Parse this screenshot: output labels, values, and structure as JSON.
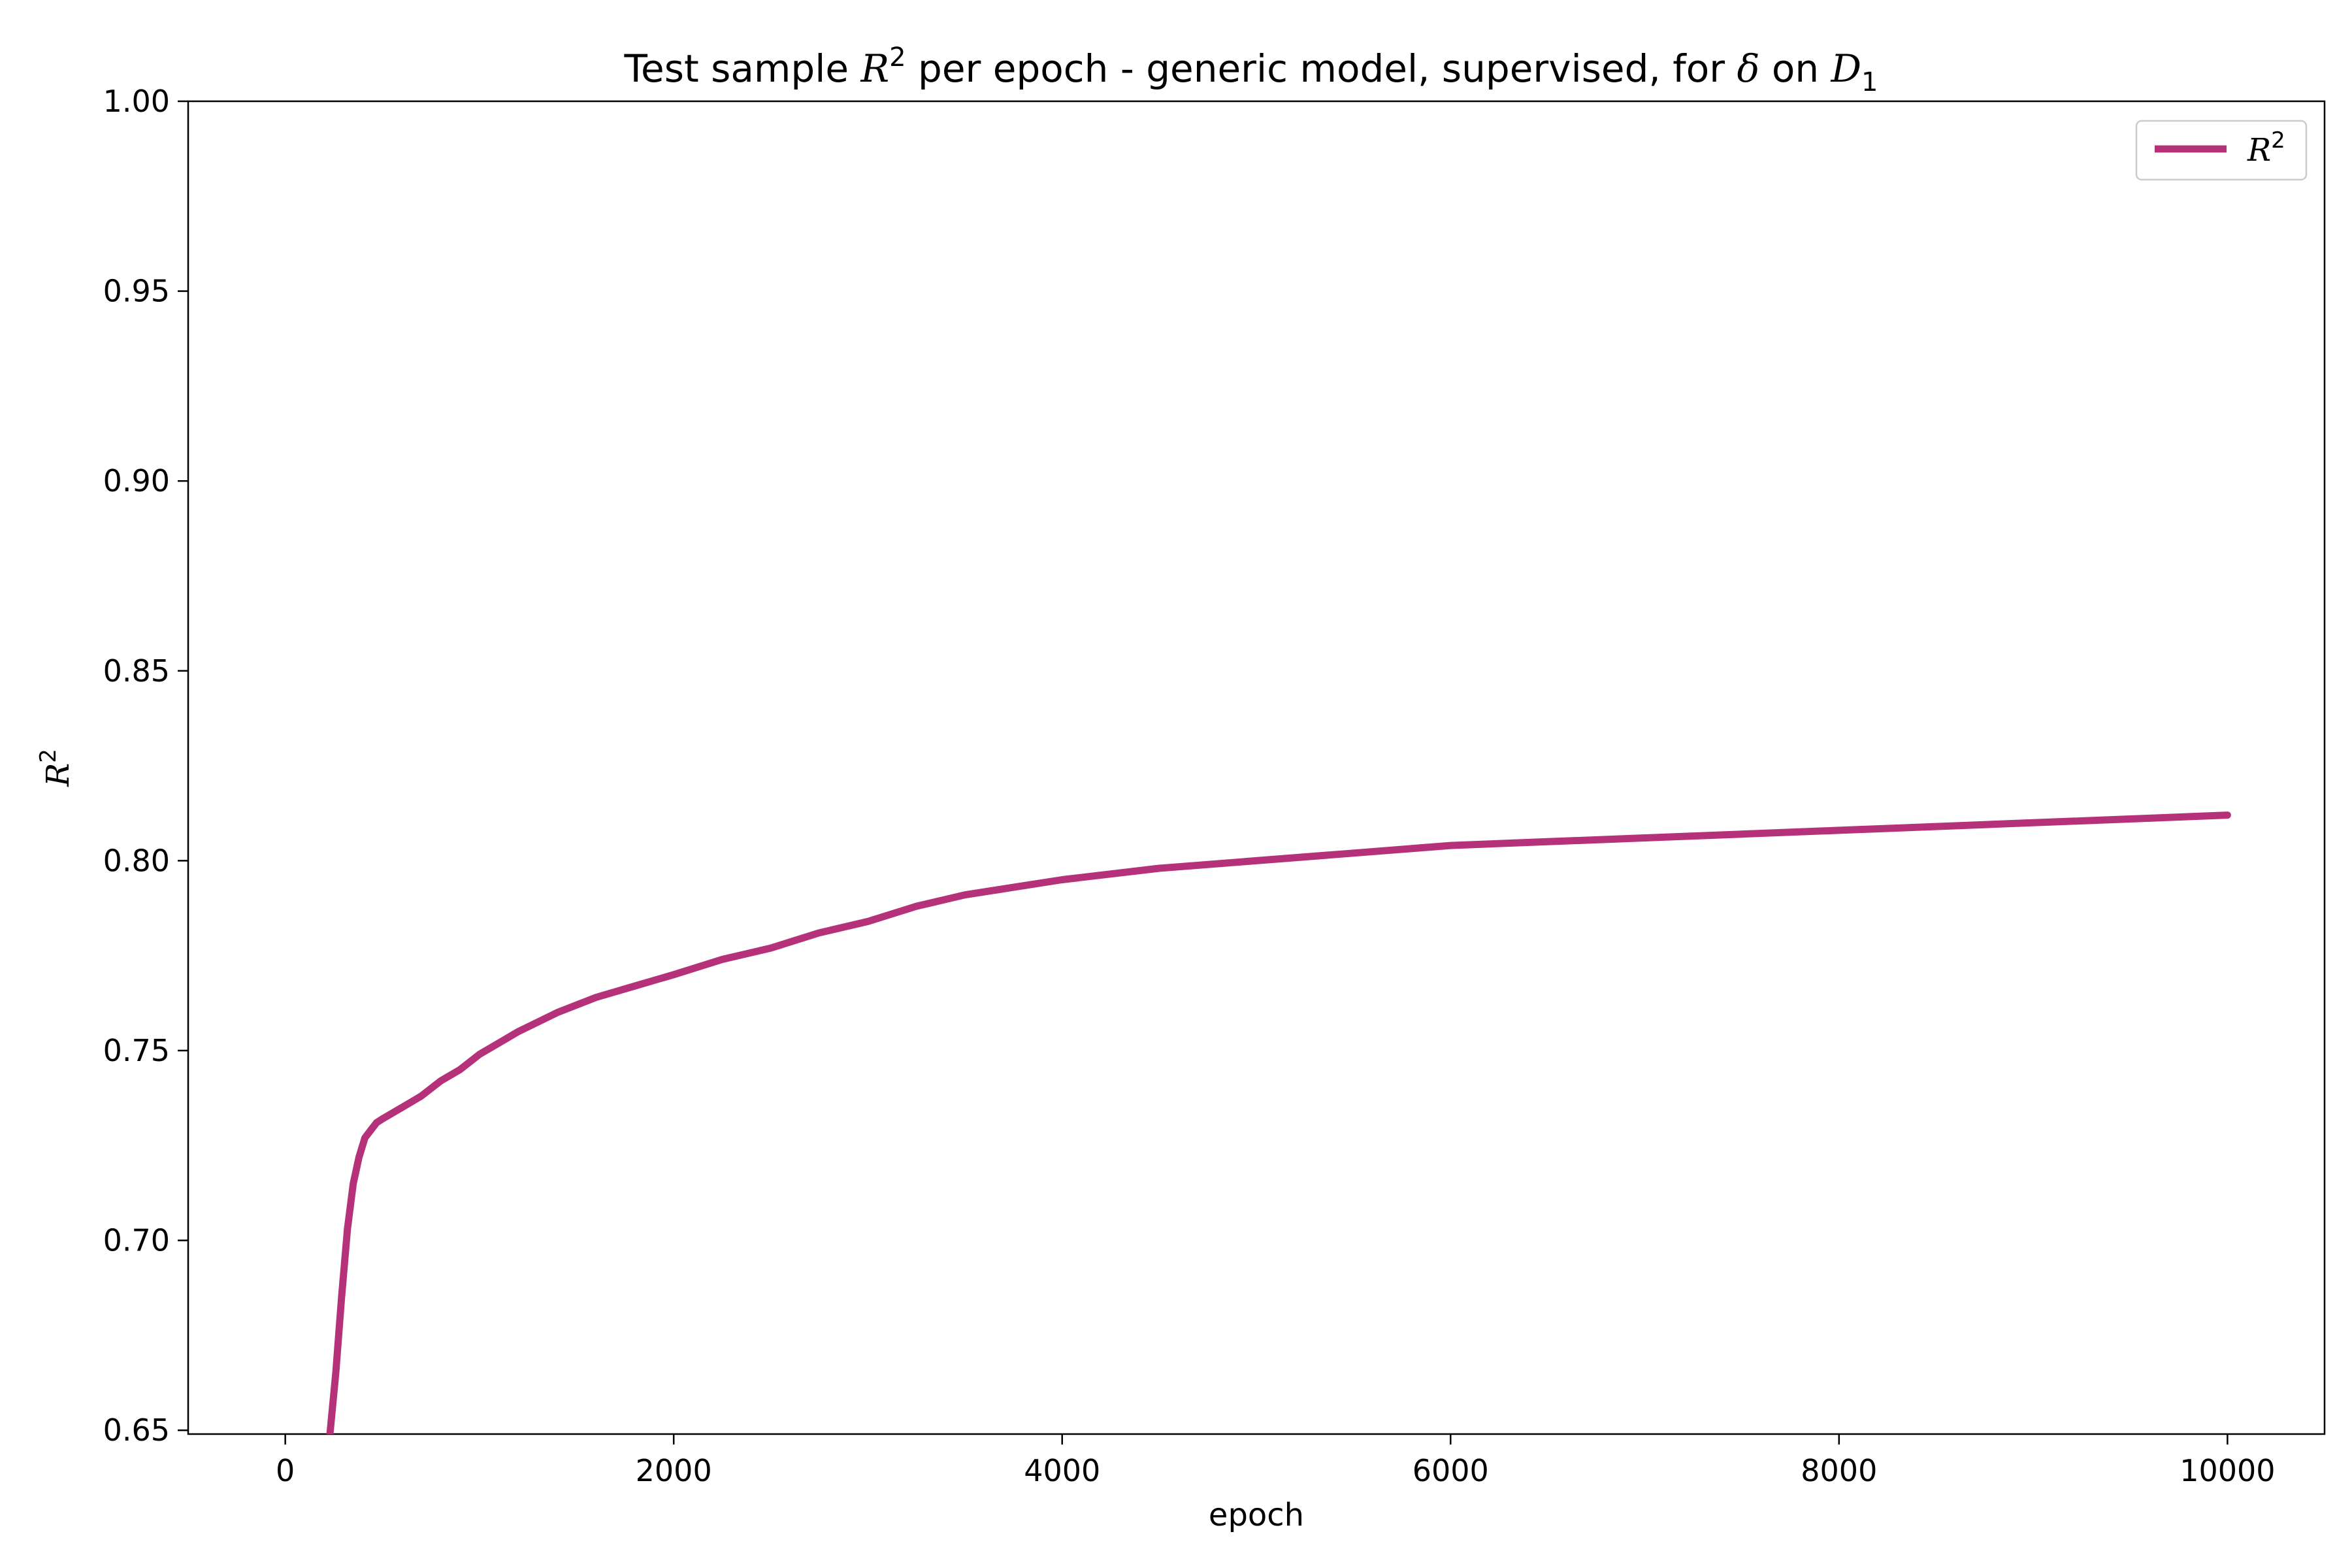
{
  "chart_data": {
    "type": "line",
    "title": {
      "prefix": "Test sample ",
      "r_sym": "R",
      "r_sup": "2",
      "middle": " per epoch - generic model, supervised, for ",
      "delta_sym": "δ",
      "on_word": " on ",
      "d_sym": "D",
      "d_sub": "1"
    },
    "xlabel": "epoch",
    "ylabel": {
      "sym": "R",
      "sup": "2"
    },
    "xlim": [
      -500,
      10500
    ],
    "ylim": [
      0.649,
      1.0
    ],
    "x_ticks": [
      0,
      2000,
      4000,
      6000,
      8000,
      10000
    ],
    "x_tick_labels": [
      "0",
      "2000",
      "4000",
      "6000",
      "8000",
      "10000"
    ],
    "y_ticks": [
      0.65,
      0.7,
      0.75,
      0.8,
      0.85,
      0.9,
      0.95,
      1.0
    ],
    "y_tick_labels": [
      "0.65",
      "0.70",
      "0.75",
      "0.80",
      "0.85",
      "0.90",
      "0.95",
      "1.00"
    ],
    "grid": false,
    "legend_position": "top-right",
    "series": [
      {
        "name": {
          "sym": "R",
          "sup": "2"
        },
        "color": "#b5327a",
        "x": [
          230,
          260,
          290,
          320,
          350,
          380,
          410,
          440,
          470,
          500,
          600,
          700,
          800,
          900,
          1000,
          1200,
          1400,
          1600,
          1800,
          2000,
          2250,
          2500,
          2750,
          3000,
          3250,
          3500,
          3750,
          4000,
          4500,
          5000,
          5500,
          6000,
          6500,
          7000,
          7500,
          8000,
          8500,
          9000,
          9500,
          10000
        ],
        "y": [
          0.649,
          0.665,
          0.685,
          0.703,
          0.715,
          0.722,
          0.727,
          0.729,
          0.731,
          0.732,
          0.735,
          0.738,
          0.742,
          0.745,
          0.749,
          0.755,
          0.76,
          0.764,
          0.767,
          0.77,
          0.774,
          0.777,
          0.781,
          0.784,
          0.788,
          0.791,
          0.793,
          0.795,
          0.798,
          0.8,
          0.802,
          0.804,
          0.805,
          0.806,
          0.807,
          0.808,
          0.809,
          0.81,
          0.811,
          0.812
        ]
      }
    ]
  }
}
